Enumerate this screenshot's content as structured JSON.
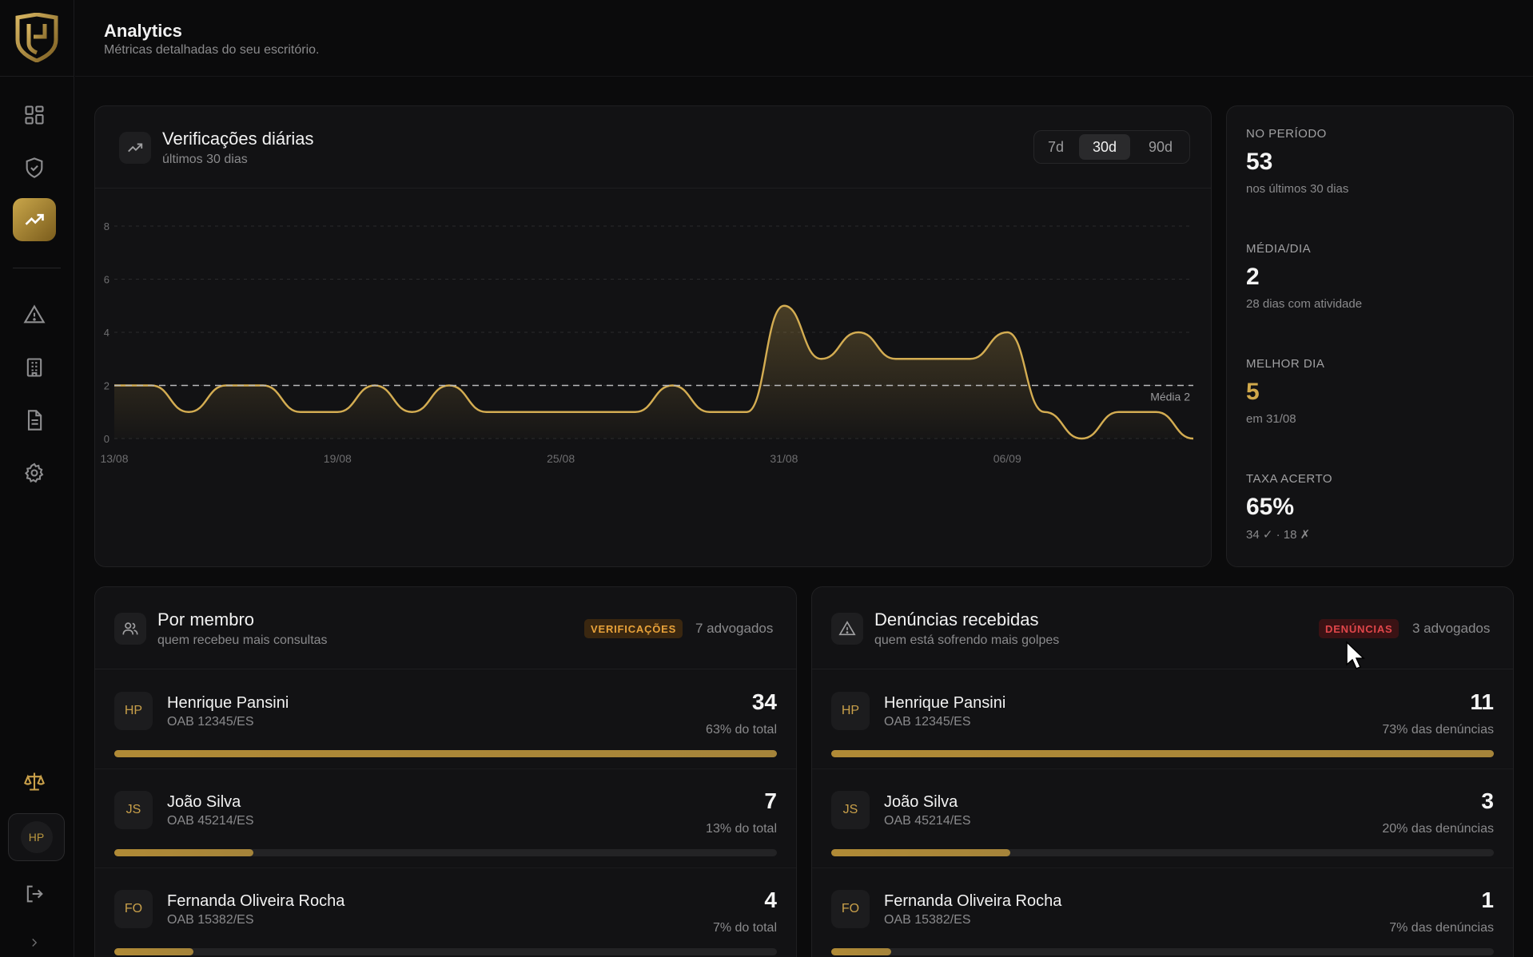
{
  "header": {
    "title": "Analytics",
    "subtitle": "Métricas detalhadas do seu escritório."
  },
  "sidebar": {
    "items": [
      {
        "name": "dashboard",
        "icon": "grid-icon"
      },
      {
        "name": "verifications",
        "icon": "shield-check-icon"
      },
      {
        "name": "analytics",
        "icon": "trending-up-icon",
        "active": true
      },
      {
        "name": "reports",
        "icon": "alert-triangle-icon"
      },
      {
        "name": "office",
        "icon": "building-icon"
      },
      {
        "name": "documents",
        "icon": "file-text-icon"
      },
      {
        "name": "settings",
        "icon": "gear-icon"
      }
    ],
    "user_initials": "HP"
  },
  "chart_card": {
    "title": "Verificações diárias",
    "subtitle": "últimos 30 dias",
    "ranges": [
      "7d",
      "30d",
      "90d"
    ],
    "active_range": "30d"
  },
  "chart_data": {
    "type": "area",
    "title": "Verificações diárias",
    "x": [
      "13/08",
      "14/08",
      "15/08",
      "16/08",
      "17/08",
      "18/08",
      "19/08",
      "20/08",
      "21/08",
      "22/08",
      "23/08",
      "24/08",
      "25/08",
      "26/08",
      "27/08",
      "28/08",
      "29/08",
      "30/08",
      "31/08",
      "01/09",
      "02/09",
      "03/09",
      "04/09",
      "05/09",
      "06/09",
      "07/09",
      "08/09",
      "09/09",
      "10/09",
      "11/09"
    ],
    "series": [
      {
        "values": [
          2,
          2,
          1,
          2,
          2,
          1,
          1,
          2,
          1,
          2,
          1,
          1,
          1,
          1,
          1,
          2,
          1,
          1,
          5,
          3,
          4,
          3,
          3,
          3,
          4,
          1,
          0,
          1,
          1,
          0
        ]
      }
    ],
    "xticks": [
      "13/08",
      "19/08",
      "25/08",
      "31/08",
      "06/09"
    ],
    "yticks": [
      "0",
      "2",
      "4",
      "6",
      "8"
    ],
    "ylim": [
      0,
      8
    ],
    "average": 2,
    "average_label": "Média 2",
    "grid": true,
    "line_color": "#d4ad52"
  },
  "stats": [
    {
      "label": "NO PERÍODO",
      "value": "53",
      "note": "nos últimos 30 dias"
    },
    {
      "label": "MÉDIA/DIA",
      "value": "2",
      "note": "28 dias com atividade"
    },
    {
      "label": "MELHOR DIA",
      "value": "5",
      "note": "em 31/08"
    },
    {
      "label": "TAXA ACERTO",
      "value": "65%",
      "note": "34 ✓ · 18 ✗"
    }
  ],
  "members_card": {
    "title": "Por membro",
    "subtitle": "quem recebeu mais consultas",
    "badge": "VERIFICAÇÕES",
    "count": "7 advogados",
    "rows": [
      {
        "initials": "HP",
        "name": "Henrique Pansini",
        "oab": "OAB 12345/ES",
        "count": "34",
        "pct": "63% do total",
        "fraction": 1.0
      },
      {
        "initials": "JS",
        "name": "João Silva",
        "oab": "OAB 45214/ES",
        "count": "7",
        "pct": "13% do total",
        "fraction": 0.21
      },
      {
        "initials": "FO",
        "name": "Fernanda Oliveira Rocha",
        "oab": "OAB 15382/ES",
        "count": "4",
        "pct": "7% do total",
        "fraction": 0.12
      }
    ]
  },
  "reports_card": {
    "title": "Denúncias recebidas",
    "subtitle": "quem está sofrendo mais golpes",
    "badge": "DENÚNCIAS",
    "count": "3 advogados",
    "rows": [
      {
        "initials": "HP",
        "name": "Henrique Pansini",
        "oab": "OAB 12345/ES",
        "count": "11",
        "pct": "73% das denúncias",
        "fraction": 1.0
      },
      {
        "initials": "JS",
        "name": "João Silva",
        "oab": "OAB 45214/ES",
        "count": "3",
        "pct": "20% das denúncias",
        "fraction": 0.27
      },
      {
        "initials": "FO",
        "name": "Fernanda Oliveira Rocha",
        "oab": "OAB 15382/ES",
        "count": "1",
        "pct": "7% das denúncias",
        "fraction": 0.09
      }
    ]
  }
}
